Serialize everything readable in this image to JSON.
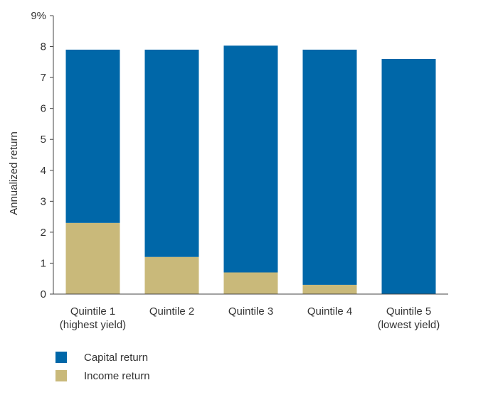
{
  "chart_data": {
    "type": "bar",
    "stacked": true,
    "ylabel": "Annualized return",
    "ylim": [
      0,
      9
    ],
    "yticks": [
      "0",
      "1",
      "2",
      "3",
      "4",
      "5",
      "6",
      "7",
      "8",
      "9%"
    ],
    "grid": false,
    "legend_position": "bottom-left",
    "categories": [
      [
        "Quintile 1",
        "(highest yield)"
      ],
      [
        "Quintile 2"
      ],
      [
        "Quintile 3"
      ],
      [
        "Quintile 4"
      ],
      [
        "Quintile 5",
        "(lowest yield)"
      ]
    ],
    "series": [
      {
        "name": "Income return",
        "color": "#C9B97A",
        "values": [
          2.3,
          1.2,
          0.7,
          0.3,
          0.0
        ]
      },
      {
        "name": "Capital return",
        "color": "#0067A8",
        "values": [
          5.6,
          6.7,
          7.33,
          7.6,
          7.6
        ]
      }
    ],
    "legend": [
      {
        "label": "Capital return",
        "color": "#0067A8"
      },
      {
        "label": "Income return",
        "color": "#C9B97A"
      }
    ]
  }
}
